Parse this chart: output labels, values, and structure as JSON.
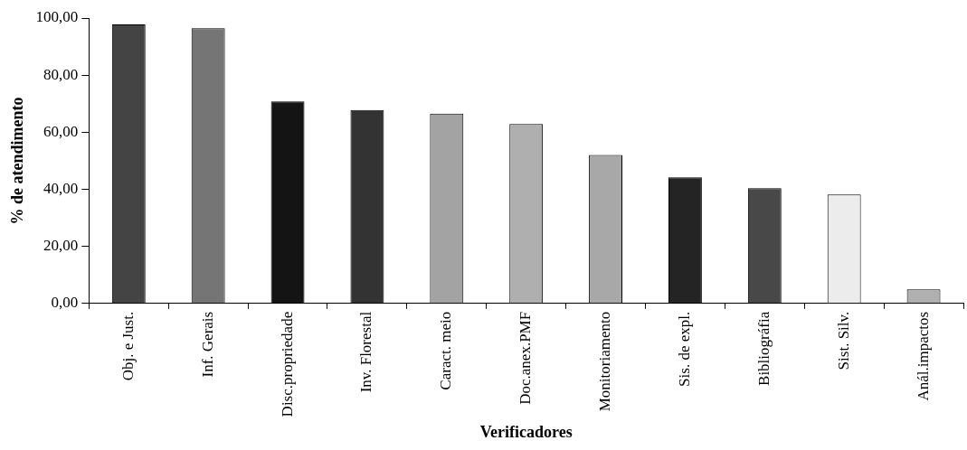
{
  "chart_data": {
    "type": "bar",
    "xlabel": "Verificadores",
    "ylabel": "% de atendimento",
    "categories": [
      "Obj. e Just.",
      "Inf. Gerais",
      "Disc.propriedade",
      "Inv. Florestal",
      "Caract. meio",
      "Doc.anex.PMF",
      "Monitoriamento",
      "Sis. de expl.",
      "Bibliográfia",
      "Sist. Silv.",
      "Anál.impactos"
    ],
    "values": [
      97.8,
      96.4,
      70.8,
      67.8,
      66.5,
      62.9,
      52,
      44.2,
      40.4,
      38.2,
      4.9
    ],
    "colors": [
      "#444444",
      "#757575",
      "#141414",
      "#333333",
      "#a3a3a3",
      "#afafaf",
      "#a8a8a8",
      "#242424",
      "#484848",
      "#ececec",
      "#b0b0b0"
    ],
    "ylim": [
      0,
      100
    ],
    "yticks": [
      {
        "value": 0,
        "label": "0,00"
      },
      {
        "value": 20,
        "label": "20,00"
      },
      {
        "value": 40,
        "label": "40,00"
      },
      {
        "value": 60,
        "label": "60,00"
      },
      {
        "value": 80,
        "label": "80,00"
      },
      {
        "value": 100,
        "label": "100,00"
      }
    ],
    "grid": false,
    "legend": false
  }
}
